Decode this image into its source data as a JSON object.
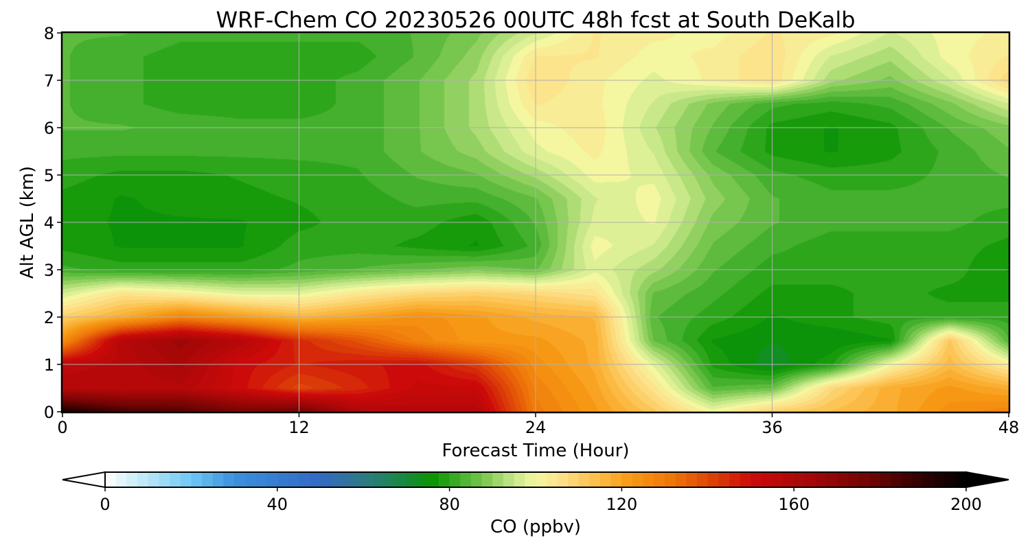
{
  "chart_data": {
    "type": "heatmap",
    "title": "WRF-Chem CO  20230526 00UTC 48h fcst at South DeKalb",
    "xlabel": "Forecast Time (Hour)",
    "ylabel": "Alt AGL (km)",
    "xlim": [
      0,
      48
    ],
    "ylim": [
      0,
      8
    ],
    "xticks": [
      0,
      12,
      24,
      36,
      48
    ],
    "yticks": [
      0,
      1,
      2,
      3,
      4,
      5,
      6,
      7,
      8
    ],
    "grid": true,
    "value_unit_label": "CO  (ppbv)",
    "x": [
      0,
      3,
      6,
      9,
      12,
      15,
      18,
      21,
      24,
      27,
      30,
      33,
      36,
      39,
      42,
      45,
      48
    ],
    "y": [
      0,
      0.5,
      1,
      1.5,
      2,
      2.5,
      3,
      3.5,
      4,
      4.5,
      5,
      5.5,
      6,
      6.5,
      7,
      7.5,
      8
    ],
    "z": [
      [
        195,
        186,
        184,
        176,
        178,
        160,
        158,
        158,
        130,
        122,
        112,
        100,
        110,
        114,
        118,
        125,
        128
      ],
      [
        158,
        157,
        158,
        150,
        140,
        145,
        152,
        152,
        128,
        120,
        105,
        84,
        86,
        108,
        118,
        122,
        118
      ],
      [
        155,
        157,
        162,
        150,
        146,
        148,
        150,
        142,
        125,
        118,
        98,
        78,
        72,
        78,
        100,
        115,
        102
      ],
      [
        125,
        158,
        165,
        158,
        145,
        138,
        128,
        122,
        122,
        118,
        86,
        76,
        74,
        74,
        76,
        112,
        84
      ],
      [
        110,
        118,
        128,
        122,
        116,
        120,
        125,
        122,
        118,
        116,
        84,
        80,
        76,
        78,
        80,
        80,
        80
      ],
      [
        96,
        105,
        102,
        98,
        98,
        104,
        108,
        110,
        108,
        105,
        86,
        82,
        78,
        78,
        80,
        78,
        78
      ],
      [
        82,
        80,
        80,
        80,
        82,
        84,
        86,
        88,
        86,
        98,
        92,
        84,
        80,
        80,
        80,
        80,
        76
      ],
      [
        78,
        76,
        76,
        76,
        80,
        80,
        78,
        76,
        82,
        100,
        96,
        86,
        82,
        80,
        80,
        80,
        78
      ],
      [
        77,
        76,
        76,
        76,
        78,
        80,
        80,
        77,
        84,
        97,
        99,
        88,
        84,
        82,
        82,
        82,
        80
      ],
      [
        78,
        76,
        77,
        78,
        79,
        80,
        82,
        82,
        86,
        96,
        100,
        90,
        84,
        82,
        82,
        82,
        82
      ],
      [
        80,
        78,
        78,
        79,
        80,
        81,
        84,
        86,
        92,
        100,
        98,
        88,
        82,
        80,
        80,
        82,
        84
      ],
      [
        82,
        82,
        82,
        82,
        82,
        82,
        86,
        90,
        98,
        102,
        96,
        84,
        78,
        76,
        78,
        82,
        86
      ],
      [
        84,
        84,
        83,
        82,
        82,
        82,
        86,
        92,
        100,
        103,
        94,
        86,
        78,
        76,
        78,
        84,
        88
      ],
      [
        84,
        82,
        80,
        80,
        80,
        82,
        86,
        92,
        104,
        102,
        96,
        88,
        82,
        80,
        82,
        88,
        96
      ],
      [
        84,
        82,
        80,
        79,
        80,
        82,
        86,
        92,
        106,
        102,
        98,
        102,
        106,
        92,
        88,
        96,
        108
      ],
      [
        84,
        82,
        80,
        80,
        80,
        80,
        84,
        90,
        104,
        104,
        100,
        102,
        106,
        96,
        92,
        100,
        104
      ],
      [
        84,
        84,
        82,
        82,
        82,
        82,
        84,
        88,
        96,
        104,
        102,
        100,
        104,
        102,
        96,
        100,
        102
      ]
    ],
    "colorbar": {
      "label": "CO  (ppbv)",
      "range": [
        0,
        200
      ],
      "ticks": [
        0,
        40,
        80,
        120,
        160,
        200
      ],
      "extend": "both",
      "stops": [
        {
          "v": 0,
          "c": "#ffffff"
        },
        {
          "v": 10,
          "c": "#b8e6f7"
        },
        {
          "v": 20,
          "c": "#6ec8f5"
        },
        {
          "v": 30,
          "c": "#3a90dd"
        },
        {
          "v": 50,
          "c": "#3368c4"
        },
        {
          "v": 60,
          "c": "#2d7a86"
        },
        {
          "v": 70,
          "c": "#168a3a"
        },
        {
          "v": 76,
          "c": "#0a9500"
        },
        {
          "v": 82,
          "c": "#3fae2a"
        },
        {
          "v": 88,
          "c": "#7cc850"
        },
        {
          "v": 95,
          "c": "#c9e88a"
        },
        {
          "v": 100,
          "c": "#f4f7a0"
        },
        {
          "v": 106,
          "c": "#fde089"
        },
        {
          "v": 114,
          "c": "#fcbf4a"
        },
        {
          "v": 122,
          "c": "#f79a15"
        },
        {
          "v": 132,
          "c": "#ee7408"
        },
        {
          "v": 142,
          "c": "#db3c08"
        },
        {
          "v": 150,
          "c": "#cc0a0a"
        },
        {
          "v": 164,
          "c": "#a30707"
        },
        {
          "v": 178,
          "c": "#6f0404"
        },
        {
          "v": 190,
          "c": "#2e0000"
        },
        {
          "v": 200,
          "c": "#000000"
        }
      ]
    }
  }
}
